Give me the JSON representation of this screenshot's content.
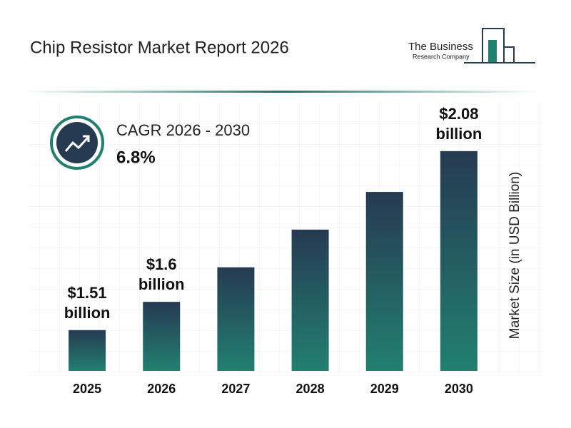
{
  "title": "Chip Resistor Market Report 2026",
  "logo": {
    "line1": "The Business",
    "line2": "Research Company"
  },
  "chart_data": {
    "type": "bar",
    "categories": [
      "2025",
      "2026",
      "2027",
      "2028",
      "2029",
      "2030"
    ],
    "values": [
      1.51,
      1.6,
      1.71,
      1.83,
      1.95,
      2.08
    ],
    "value_labels": [
      "$1.51 billion",
      "$1.6 billion",
      null,
      null,
      null,
      "$2.08 billion"
    ],
    "ylim": [
      1.38,
      2.2
    ],
    "ylabel": "Market Size (in USD Billion)",
    "annotations": {
      "cagr_label": "CAGR 2026 - 2030",
      "cagr_value": "6.8%"
    },
    "color_top": "#263a52",
    "color_bottom": "#228070"
  }
}
